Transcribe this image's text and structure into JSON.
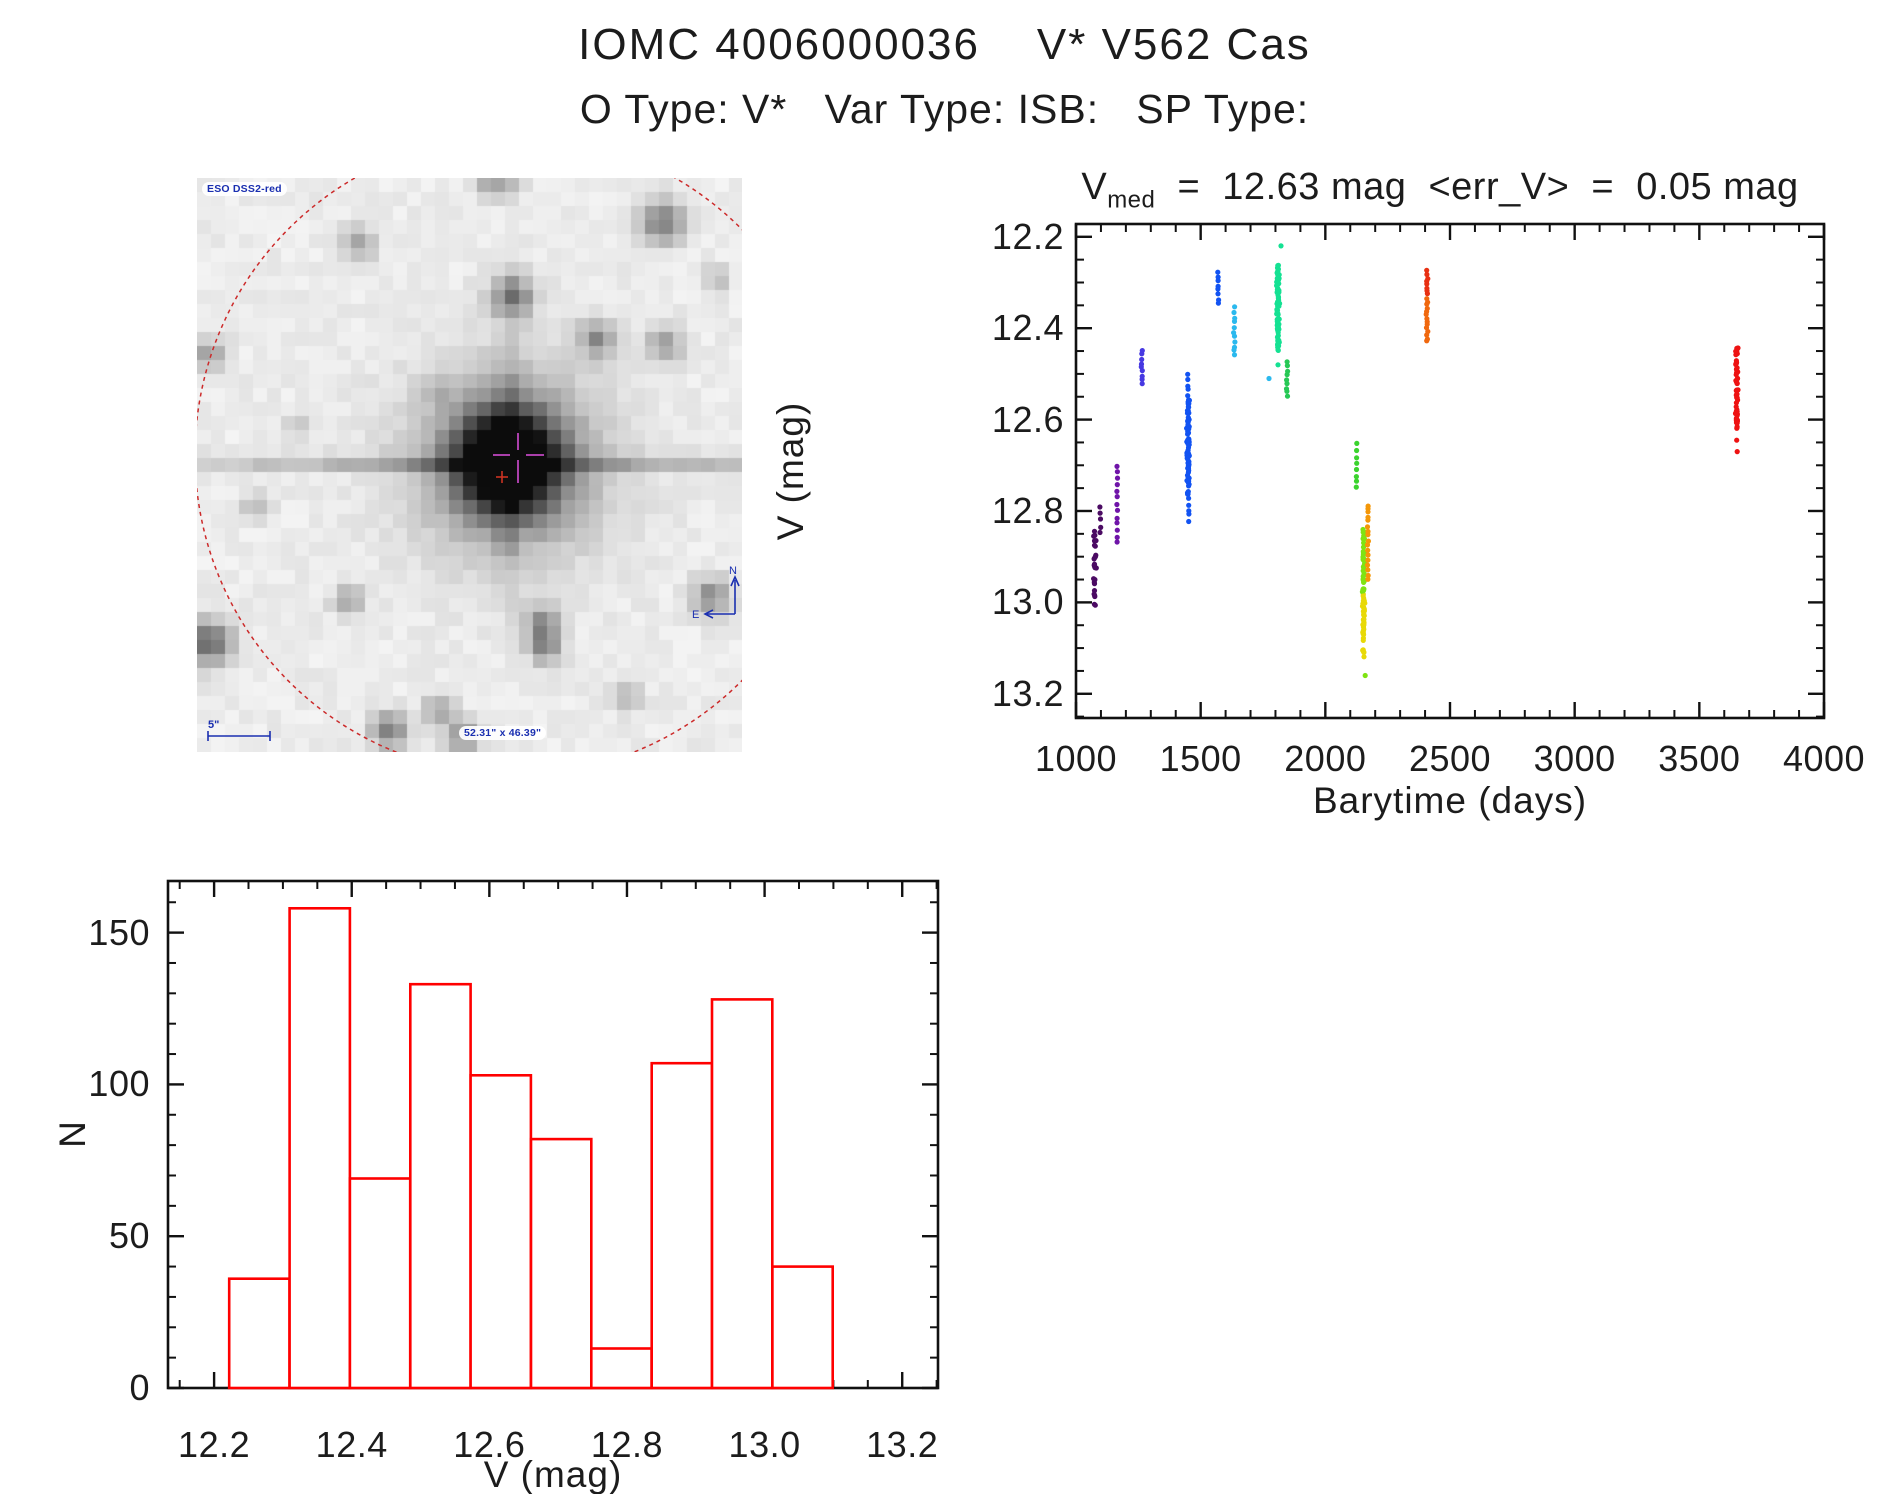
{
  "page": {
    "title": "IOMC 4006000036    V* V562 Cas",
    "subtitle": "O Type: V*   Var Type: ISB:   SP Type:"
  },
  "finder": {
    "survey_label": "ESO DSS2-red",
    "scale_bar_label": "5\"",
    "fov_label": "52.31\" x 46.39\"",
    "compass_north": "N",
    "compass_east": "E",
    "circle_color": "#cc2a2a",
    "crosshair_color": "#aa3faa",
    "marker_color": "#cc3322",
    "annotation_color": "#1a2fb0"
  },
  "lightcurve": {
    "title_symbol": "V",
    "title_subscript": "med",
    "title_text": "  =  12.63 mag  <err_V>  =  0.05 mag",
    "xlabel": "Barytime (days)",
    "ylabel": "V (mag)",
    "x_tick_labels": [
      "1000",
      "1500",
      "2000",
      "2500",
      "3000",
      "3500",
      "4000"
    ],
    "y_tick_labels": [
      "12.2",
      "12.4",
      "12.6",
      "12.8",
      "13.0",
      "13.2"
    ]
  },
  "histogram": {
    "xlabel": "V (mag)",
    "ylabel": "N",
    "x_tick_labels": [
      "12.2",
      "12.4",
      "12.6",
      "12.8",
      "13.0",
      "13.2"
    ],
    "y_tick_labels": [
      "0",
      "50",
      "100",
      "150"
    ]
  },
  "chart_data": [
    {
      "type": "scatter",
      "title": "V_med = 12.63 mag <err_V> = 0.05 mag",
      "vmed_mag": 12.63,
      "err_v_mag": 0.05,
      "xlabel": "Barytime (days)",
      "ylabel": "V (mag)",
      "xlim": [
        1000,
        4000
      ],
      "ylim_displayed": [
        13.253,
        12.172
      ],
      "x_major_ticks": [
        1000,
        1500,
        2000,
        2500,
        3000,
        3500,
        4000
      ],
      "y_major_ticks": [
        12.2,
        12.4,
        12.6,
        12.8,
        13.0,
        13.2
      ],
      "x_minor_step": 100,
      "y_minor_step": 0.05,
      "y_axis_inverted_mag": true,
      "clusters": [
        {
          "t": 1075,
          "t_spread": 8,
          "v_min": 12.84,
          "v_max": 13.02,
          "n": 26,
          "color": "#4B0B63",
          "profile": "dense"
        },
        {
          "t": 1098,
          "t_spread": 4,
          "v_min": 12.79,
          "v_max": 12.85,
          "n": 5,
          "color": "#4B0B63",
          "profile": "uniform"
        },
        {
          "t": 1165,
          "t_spread": 4,
          "v_min": 12.7,
          "v_max": 12.87,
          "n": 13,
          "color": "#6F14A8",
          "profile": "uniform"
        },
        {
          "t": 1265,
          "t_spread": 5,
          "v_min": 12.45,
          "v_max": 12.52,
          "n": 9,
          "color": "#4638E2",
          "profile": "uniform"
        },
        {
          "t": 1450,
          "t_spread": 7,
          "v_min": 12.555,
          "v_max": 12.775,
          "n": 80,
          "color": "#1253F2",
          "profile": "dense"
        },
        {
          "t": 1450,
          "t_spread": 4,
          "v_min": 12.5,
          "v_max": 12.56,
          "n": 6,
          "color": "#1253F2",
          "profile": "uniform"
        },
        {
          "t": 1452,
          "t_spread": 4,
          "v_min": 12.775,
          "v_max": 12.82,
          "n": 5,
          "color": "#1253F2",
          "profile": "uniform"
        },
        {
          "t": 1570,
          "t_spread": 4,
          "v_min": 12.28,
          "v_max": 12.345,
          "n": 8,
          "color": "#1253F2",
          "profile": "uniform"
        },
        {
          "t": 1635,
          "t_spread": 4,
          "v_min": 12.355,
          "v_max": 12.46,
          "n": 11,
          "color": "#2BB9EE",
          "profile": "uniform"
        },
        {
          "t": 1810,
          "t_spread": 7,
          "v_min": 12.26,
          "v_max": 12.45,
          "n": 90,
          "color": "#15E193",
          "profile": "dense"
        },
        {
          "t": 1846,
          "t_spread": 4,
          "v_min": 12.475,
          "v_max": 12.55,
          "n": 9,
          "color": "#27C855",
          "profile": "uniform"
        },
        {
          "t": 2125,
          "t_spread": 3,
          "v_min": 12.655,
          "v_max": 12.75,
          "n": 8,
          "color": "#3BD32E",
          "profile": "uniform"
        },
        {
          "t": 2153,
          "t_spread": 6,
          "v_min": 12.84,
          "v_max": 13.12,
          "n": 80,
          "color": "#7FE312",
          "color_below": "#E8D907",
          "color_split_v": 12.98,
          "profile": "dense"
        },
        {
          "t": 2171,
          "t_spread": 4,
          "v_min": 12.79,
          "v_max": 12.95,
          "n": 16,
          "color": "#F49708",
          "profile": "uniform"
        },
        {
          "t": 2408,
          "t_spread": 5,
          "v_min": 12.275,
          "v_max": 12.43,
          "n": 22,
          "color": "#E83012",
          "color_below": "#F0680E",
          "color_split_v": 12.335,
          "profile": "uniform"
        },
        {
          "t": 3650,
          "t_spread": 6,
          "v_min": 12.44,
          "v_max": 12.62,
          "n": 52,
          "color": "#EE1212",
          "profile": "dense"
        }
      ],
      "outliers": [
        {
          "t": 1822,
          "v": 12.22,
          "color": "#15E193"
        },
        {
          "t": 1774,
          "v": 12.51,
          "color": "#2BB9EE"
        },
        {
          "t": 1810,
          "v": 12.48,
          "color": "#15E193"
        },
        {
          "t": 2160,
          "v": 13.16,
          "color": "#7FE312"
        },
        {
          "t": 2171,
          "v": 12.795,
          "color": "#F49708"
        },
        {
          "t": 3650,
          "v": 12.645,
          "color": "#EE1212"
        },
        {
          "t": 3652,
          "v": 12.67,
          "color": "#EE1212"
        }
      ]
    },
    {
      "type": "bar",
      "xlabel": "V (mag)",
      "ylabel": "N",
      "bin_start": 12.222,
      "bin_width": 0.0877,
      "counts": [
        36,
        158,
        69,
        133,
        103,
        82,
        13,
        107,
        128,
        40
      ],
      "xlim": [
        12.133,
        13.252
      ],
      "ylim": [
        0,
        167
      ],
      "x_major_ticks": [
        12.2,
        12.4,
        12.6,
        12.8,
        13.0,
        13.2
      ],
      "y_major_ticks": [
        0,
        50,
        100,
        150
      ],
      "x_minor_step": 0.05,
      "y_minor_step": 10,
      "bar_color": "#FF0000"
    }
  ]
}
